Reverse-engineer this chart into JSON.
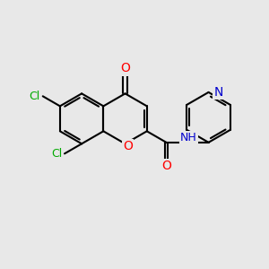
{
  "background_color": "#e8e8e8",
  "bond_color": "#000000",
  "bond_width": 1.5,
  "atom_colors": {
    "O": "#ff0000",
    "N": "#0000cd",
    "Cl": "#00aa00",
    "H": "#888888",
    "C": "#000000"
  },
  "font_size": 9,
  "figsize": [
    3.0,
    3.0
  ],
  "dpi": 100
}
